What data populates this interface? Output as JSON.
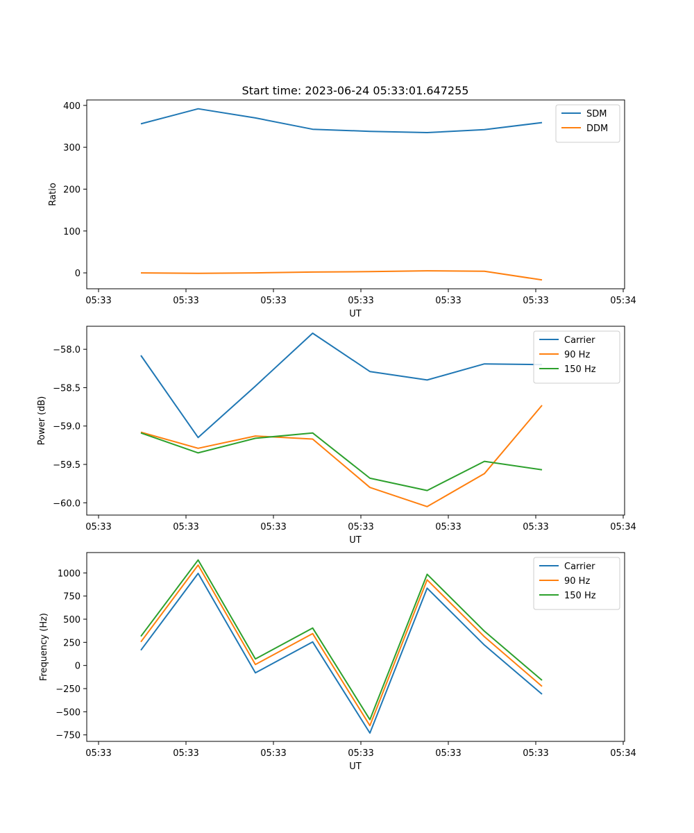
{
  "figure_title": "Start time: 2023-06-24 05:33:01.647255",
  "colors": {
    "blue": "#1f77b4",
    "orange": "#ff7f0e",
    "green": "#2ca02c"
  },
  "chart_data": [
    {
      "type": "line",
      "xlabel": "UT",
      "ylabel": "Ratio",
      "x_tick_labels": [
        "05:33",
        "05:33",
        "05:33",
        "05:33",
        "05:33",
        "05:33",
        "05:34"
      ],
      "y_ticks": [
        0,
        100,
        200,
        300,
        400
      ],
      "ylim": [
        -38,
        413
      ],
      "legend_position": "upper right",
      "series": [
        {
          "name": "SDM",
          "color": "blue",
          "values": [
            356,
            392,
            370,
            343,
            338,
            335,
            342,
            359
          ]
        },
        {
          "name": "DDM",
          "color": "orange",
          "values": [
            0,
            -1,
            0,
            2,
            3,
            5,
            4,
            -17
          ]
        }
      ]
    },
    {
      "type": "line",
      "xlabel": "UT",
      "ylabel": "Power (dB)",
      "x_tick_labels": [
        "05:33",
        "05:33",
        "05:33",
        "05:33",
        "05:33",
        "05:33",
        "05:34"
      ],
      "y_ticks": [
        -58.0,
        -58.5,
        -59.0,
        -59.5,
        -60.0
      ],
      "ylim": [
        -60.16,
        -57.7
      ],
      "legend_position": "upper right",
      "series": [
        {
          "name": "Carrier",
          "color": "blue",
          "values": [
            -58.08,
            -59.15,
            -58.48,
            -57.79,
            -58.29,
            -58.4,
            -58.19,
            -58.2
          ]
        },
        {
          "name": "90 Hz",
          "color": "orange",
          "values": [
            -59.08,
            -59.29,
            -59.13,
            -59.17,
            -59.8,
            -60.05,
            -59.62,
            -58.73
          ]
        },
        {
          "name": "150 Hz",
          "color": "green",
          "values": [
            -59.09,
            -59.35,
            -59.16,
            -59.09,
            -59.68,
            -59.84,
            -59.46,
            -59.57
          ]
        }
      ]
    },
    {
      "type": "line",
      "xlabel": "UT",
      "ylabel": "Frequency (Hz)",
      "x_tick_labels": [
        "05:33",
        "05:33",
        "05:33",
        "05:33",
        "05:33",
        "05:33",
        "05:34"
      ],
      "y_ticks": [
        1000,
        750,
        500,
        250,
        0,
        -250,
        -500,
        -750
      ],
      "ylim": [
        -820,
        1220
      ],
      "legend_position": "upper right",
      "series": [
        {
          "name": "Carrier",
          "color": "blue",
          "values": [
            165,
            995,
            -80,
            255,
            -730,
            835,
            220,
            -310
          ]
        },
        {
          "name": "90 Hz",
          "color": "orange",
          "values": [
            255,
            1085,
            10,
            345,
            -650,
            925,
            310,
            -225
          ]
        },
        {
          "name": "150 Hz",
          "color": "green",
          "values": [
            315,
            1140,
            70,
            405,
            -585,
            985,
            370,
            -160
          ]
        }
      ]
    }
  ]
}
